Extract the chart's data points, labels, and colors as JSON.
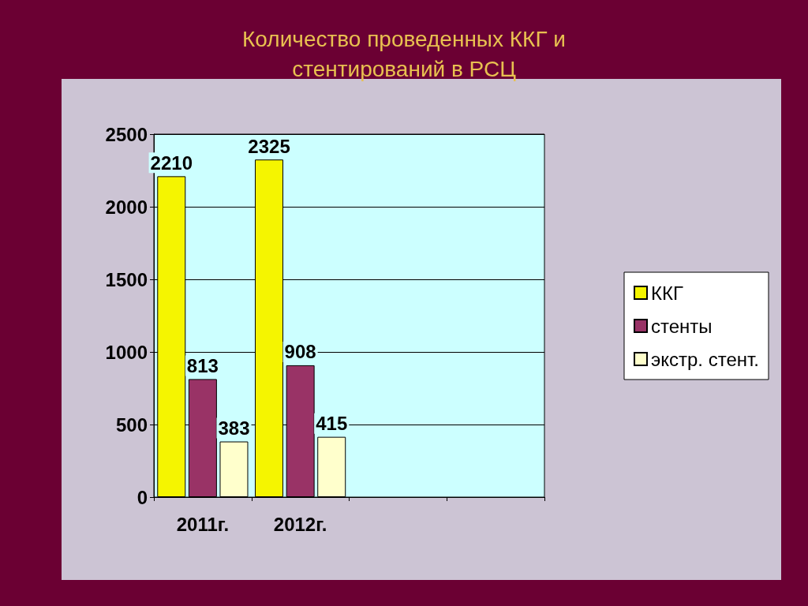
{
  "chart_data": {
    "type": "bar",
    "title": "Количество проведенных ККГ и\nстентирований в РСЦ",
    "categories": [
      "2011г.",
      "2012г.",
      null,
      null
    ],
    "series": [
      {
        "name": "ККГ",
        "color": "#f5f500",
        "values": [
          2210,
          2325,
          null,
          null
        ]
      },
      {
        "name": "стенты",
        "color": "#993366",
        "values": [
          813,
          908,
          null,
          null
        ]
      },
      {
        "name": "экстр. стент.",
        "color": "#ffffcc",
        "values": [
          383,
          415,
          null,
          null
        ]
      }
    ],
    "ylim": [
      0,
      2500
    ],
    "yticks": [
      0,
      500,
      1000,
      1500,
      2000,
      2500
    ],
    "grid": "y",
    "legend": "right",
    "data_labels": true
  }
}
